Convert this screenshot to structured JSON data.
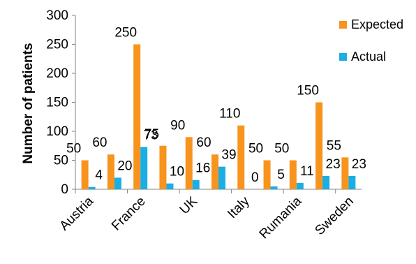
{
  "chart_data": {
    "type": "bar",
    "title": "",
    "xlabel": "",
    "ylabel": "Number of patients",
    "ylim": [
      0,
      300
    ],
    "yticks": [
      0,
      50,
      100,
      150,
      200,
      250,
      300
    ],
    "grid": false,
    "legend_position": "top-right",
    "categories": [
      "Austria",
      "",
      "France",
      "",
      "UK",
      "",
      "Italy",
      "",
      "Rumania",
      "",
      "Sweden"
    ],
    "category_label_display": [
      "Austria",
      "France",
      "UK",
      "Italy",
      "Rumania",
      "Sweden"
    ],
    "series": [
      {
        "name": "Expected",
        "color": "#F7941D",
        "values": [
          50,
          60,
          250,
          75,
          90,
          60,
          110,
          50,
          50,
          150,
          55
        ]
      },
      {
        "name": "Actual",
        "color": "#1AAEE5",
        "values": [
          4,
          20,
          73,
          10,
          16,
          39,
          0,
          5,
          11,
          23,
          23
        ]
      }
    ]
  }
}
